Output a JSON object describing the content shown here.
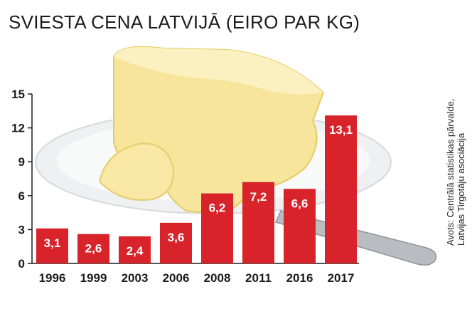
{
  "title": "SVIESTA CENA LATVIJĀ (EIRO PAR KG)",
  "source": {
    "line1": "Avots: Centrālā statistikas pārvalde,",
    "line2": "Latvijas Tirgotāju asociācija"
  },
  "colors": {
    "bar": "#d8232a",
    "bar_label": "#ffffff",
    "axis": "#1c1c1c",
    "butter_light": "#fbefb4",
    "butter_dark": "#e8cf6d",
    "plate": "#f3f4f4"
  },
  "chart_data": {
    "type": "bar",
    "title": "SVIESTA CENA LATVIJĀ (EIRO PAR KG)",
    "categories": [
      "1996",
      "1999",
      "2003",
      "2006",
      "2008",
      "2011",
      "2016",
      "2017"
    ],
    "values": [
      3.1,
      2.6,
      2.4,
      3.6,
      6.2,
      7.2,
      6.6,
      13.1
    ],
    "value_labels": [
      "3,1",
      "2,6",
      "2,4",
      "3,6",
      "6,2",
      "7,2",
      "6,6",
      "13,1"
    ],
    "yticks": [
      0,
      3,
      6,
      9,
      12,
      15
    ],
    "ylim": [
      0,
      15
    ],
    "xlabel": "",
    "ylabel": "",
    "grid": false,
    "legend": "none"
  }
}
